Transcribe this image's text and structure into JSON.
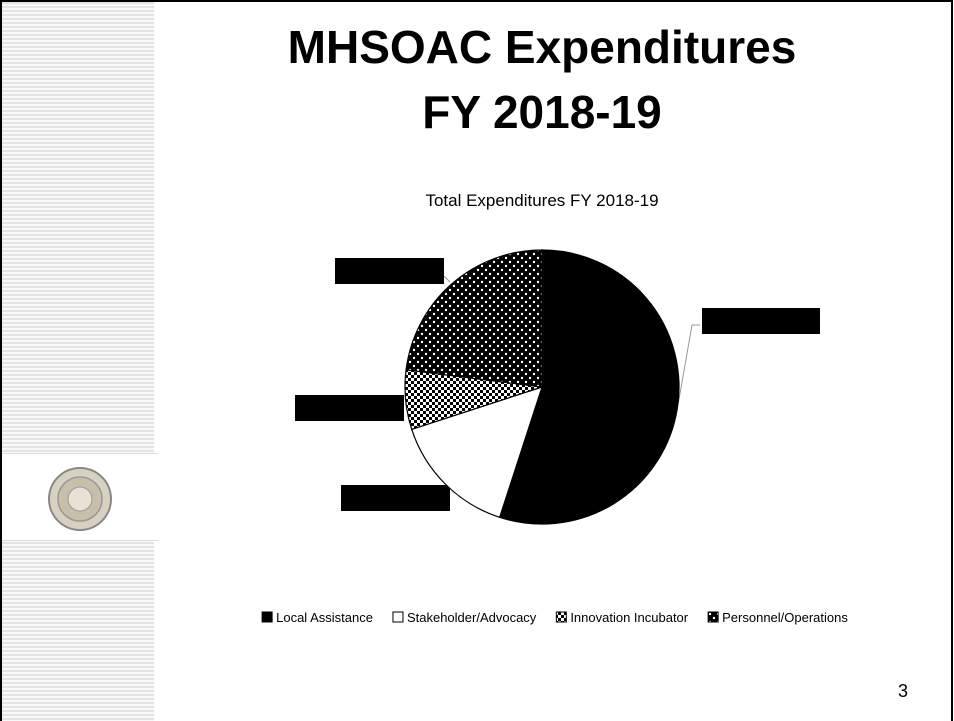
{
  "slide": {
    "title_lines": [
      "MHSOAC Expenditures",
      "FY 2018-19"
    ],
    "page_number": "3"
  },
  "chart_data": {
    "type": "pie",
    "title": "Total Expenditures FY 2018-19",
    "categories": [
      "Local Assistance",
      "Stakeholder/Advocacy",
      "Innovation Incubator",
      "Personnel/Operations"
    ],
    "values": [
      55,
      15,
      7,
      23
    ]
  }
}
